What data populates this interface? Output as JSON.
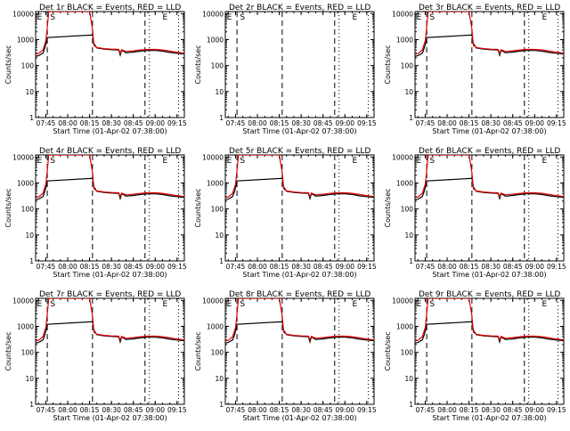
{
  "chart_data": {
    "type": "line",
    "layout": "3x3 grid",
    "x_start_time": "01-Apr-02 07:38:00",
    "xlabel": "Start Time (01-Apr-02 07:38:00)",
    "ylabel": "Counts/sec",
    "y_scale": "log",
    "ylim": [
      1,
      12000
    ],
    "y_ticks": [
      1,
      10,
      100,
      1000,
      10000
    ],
    "y_tick_labels": [
      "1",
      "10",
      "100",
      "1000",
      "10000"
    ],
    "x_ticks": [
      "07:45",
      "08:00",
      "08:15",
      "08:30",
      "08:45",
      "09:00",
      "09:15"
    ],
    "xlim": [
      "07:38",
      "09:20"
    ],
    "grid": false,
    "series_legend_text": "BLACK = Events, RED = LLD",
    "series_colors": {
      "Events": "#000000",
      "LLD": "#e00000"
    },
    "vertical_markers": [
      {
        "time": "07:46",
        "style": "dashed"
      },
      {
        "time": "08:17",
        "style": "dashed"
      },
      {
        "time": "08:53",
        "style": "dashed"
      },
      {
        "time": "08:56",
        "style": "dotted"
      },
      {
        "time": "09:16",
        "style": "dotted"
      }
    ],
    "corner_letters": {
      "E": "07:39",
      "S": "07:48",
      "E2": "09:05"
    },
    "panels": [
      {
        "title": "Det 1r BLACK = Events, RED = LLD",
        "letters": [
          "E",
          "S",
          "E"
        ],
        "has_data": true
      },
      {
        "title": "Det 2r BLACK = Events, RED = LLD",
        "letters": [
          "E",
          "S",
          "E"
        ],
        "has_data": false
      },
      {
        "title": "Det 3r BLACK = Events, RED = LLD",
        "letters": [
          "E",
          "S",
          "E"
        ],
        "has_data": true
      },
      {
        "title": "Det 4r BLACK = Events, RED = LLD",
        "letters": [
          "E",
          "S",
          "E"
        ],
        "has_data": true
      },
      {
        "title": "Det 5r BLACK = Events, RED = LLD",
        "letters": [
          "E",
          "S",
          "E"
        ],
        "has_data": true
      },
      {
        "title": "Det 6r BLACK = Events, RED = LLD",
        "letters": [
          "E",
          "S",
          "E"
        ],
        "has_data": true
      },
      {
        "title": "Det 7r BLACK = Events, RED = LLD",
        "letters": [
          "E",
          "S",
          "E"
        ],
        "has_data": true
      },
      {
        "title": "Det 8r BLACK = Events, RED = LLD",
        "letters": [
          "E",
          "S",
          "E"
        ],
        "has_data": true
      },
      {
        "title": "Det 9r BLACK = Events, RED = LLD",
        "letters": [
          "E",
          "S",
          "E"
        ],
        "has_data": true
      }
    ],
    "series": [
      {
        "name": "Events",
        "x": [
          "07:38",
          "07:40",
          "07:43",
          "07:44",
          "07:45",
          "07:46",
          "08:17",
          "08:18",
          "08:20",
          "08:25",
          "08:30",
          "08:35",
          "08:36",
          "08:37",
          "08:40",
          "08:45",
          "08:50",
          "08:55",
          "09:00",
          "09:05",
          "09:10",
          "09:14",
          "09:20"
        ],
        "y": [
          230,
          240,
          300,
          420,
          650,
          1200,
          1500,
          700,
          480,
          430,
          410,
          400,
          250,
          390,
          310,
          330,
          360,
          380,
          380,
          360,
          320,
          300,
          280
        ]
      },
      {
        "name": "LLD",
        "x": [
          "07:38",
          "07:40",
          "07:43",
          "07:45",
          "07:46",
          "07:47",
          "08:15",
          "08:17",
          "08:18",
          "08:20",
          "08:25",
          "08:30",
          "08:35",
          "08:36",
          "08:37",
          "08:40",
          "08:45",
          "08:50",
          "08:55",
          "09:00",
          "09:05",
          "09:10",
          "09:14",
          "09:20"
        ],
        "y": [
          280,
          290,
          400,
          900,
          3000,
          12000,
          12000,
          2500,
          600,
          500,
          450,
          430,
          420,
          300,
          410,
          350,
          370,
          400,
          420,
          420,
          400,
          360,
          330,
          300
        ]
      }
    ]
  }
}
